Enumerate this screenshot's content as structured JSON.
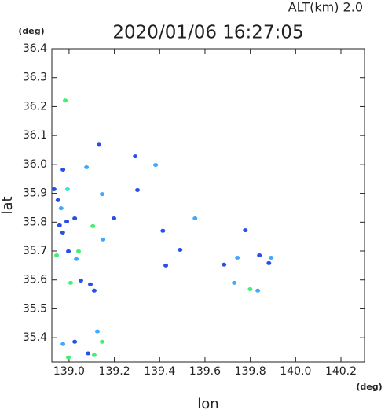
{
  "chart_data": {
    "type": "scatter",
    "title": "2020/01/06 16:27:05",
    "subtitle": "ALT(km)  2.0",
    "x_label": "lon",
    "y_label": "lat",
    "x_unit": "(deg)",
    "y_unit": "(deg)",
    "x": [
      138.983,
      138.973,
      139.077,
      138.934,
      138.993,
      138.951,
      138.965,
      139.025,
      138.958,
      138.972,
      139.105,
      139.146,
      138.945,
      138.997,
      139.042,
      139.032,
      139.007,
      139.052,
      139.094,
      139.111,
      139.15,
      139.125,
      138.973,
      139.025,
      139.084,
      139.111,
      139.146,
      138.997,
      139.302,
      139.292,
      139.382,
      139.414,
      139.556,
      139.132,
      139.684,
      139.743,
      139.729,
      139.799,
      139.833,
      139.84,
      139.892,
      139.882,
      139.778,
      139.427,
      139.49,
      139.198,
      138.99
    ],
    "values": [
      36.221,
      35.982,
      35.99,
      35.914,
      35.914,
      35.876,
      35.848,
      35.813,
      35.789,
      35.764,
      35.786,
      35.897,
      35.685,
      35.699,
      35.699,
      35.672,
      35.59,
      35.598,
      35.585,
      35.563,
      35.74,
      35.422,
      35.378,
      35.386,
      35.346,
      35.34,
      35.386,
      35.332,
      35.911,
      36.028,
      35.998,
      35.77,
      35.813,
      36.068,
      35.653,
      35.677,
      35.59,
      35.568,
      35.563,
      35.685,
      35.677,
      35.658,
      35.772,
      35.65,
      35.704,
      35.813,
      35.802
    ],
    "colors": [
      "#40f070",
      "#2850e8",
      "#40a8ff",
      "#2850e8",
      "#30e8e0",
      "#2850e8",
      "#40a8ff",
      "#2850e8",
      "#2850e8",
      "#2850e8",
      "#40f070",
      "#40a8ff",
      "#40f070",
      "#2850e8",
      "#40f070",
      "#40a8ff",
      "#40f070",
      "#2850e8",
      "#2850e8",
      "#2850e8",
      "#40a8ff",
      "#40a8ff",
      "#40a8ff",
      "#2850e8",
      "#2850e8",
      "#40f070",
      "#40f070",
      "#40f070",
      "#2850e8",
      "#2850e8",
      "#40a8ff",
      "#2850e8",
      "#40a8ff",
      "#2850e8",
      "#2850e8",
      "#40a8ff",
      "#40a8ff",
      "#40f070",
      "#40a8ff",
      "#2850e8",
      "#40a8ff",
      "#2850e8",
      "#2850e8",
      "#2850e8",
      "#2850e8",
      "#2850e8",
      "#2850e8"
    ],
    "xlim": [
      138.924,
      140.304
    ],
    "ylim": [
      35.316,
      36.4
    ],
    "xticks": [
      {
        "value": 139,
        "label": "139.0"
      },
      139.2,
      139.4,
      139.6,
      139.8,
      {
        "value": 140,
        "label": "140.0"
      },
      140.2
    ],
    "yticks": [
      36.4,
      36.3,
      36.2,
      36.1,
      {
        "value": 36,
        "label": "36.0"
      },
      35.9,
      35.8,
      35.7,
      35.6,
      35.5,
      35.4
    ],
    "grid": false
  }
}
